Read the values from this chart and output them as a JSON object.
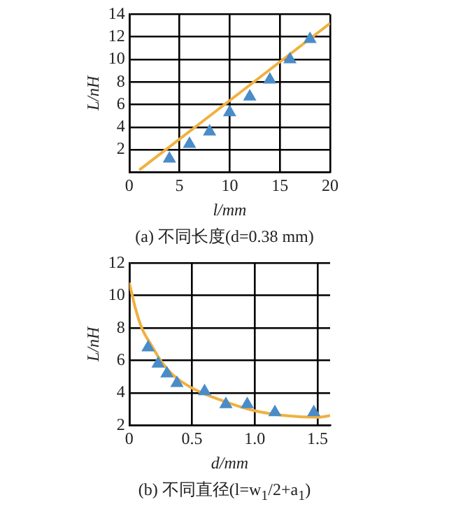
{
  "chart_data": [
    {
      "type": "scatter",
      "title": "(a) 不同长度(d=0.38 mm)",
      "xlabel": "l/mm",
      "ylabel": "L/nH",
      "grid": true,
      "xlim": [
        0,
        20
      ],
      "xticks": [
        0,
        5,
        10,
        15,
        20
      ],
      "ylim": [
        0,
        14
      ],
      "yticks": [
        {
          "value": 0,
          "label": null
        },
        2,
        4,
        6,
        8,
        10,
        12,
        14
      ],
      "series": [
        {
          "type": "line",
          "color": "#f0b040",
          "marker": "none",
          "x": [
            1,
            20
          ],
          "values": [
            0.2,
            13.2
          ]
        },
        {
          "type": "scatter",
          "color": "#4a8cc8",
          "marker": "triangle",
          "x": [
            4,
            6,
            8,
            10,
            12,
            14,
            16,
            18
          ],
          "values": [
            1.2,
            2.5,
            3.6,
            5.3,
            6.7,
            8.2,
            10,
            11.8
          ]
        }
      ]
    },
    {
      "type": "scatter",
      "title": "(b) 不同直径(l=w$_{1}$/2+a$_{1}$)",
      "xlabel": "d/mm",
      "ylabel": "L/nH",
      "grid": true,
      "xlim": [
        0,
        1.6
      ],
      "xticks": [
        0,
        0.5,
        {
          "value": 1,
          "label": "1.0"
        },
        1.5
      ],
      "ylim": [
        2,
        12
      ],
      "yticks": [
        2,
        4,
        6,
        8,
        10,
        12
      ],
      "series": [
        {
          "type": "line",
          "color": "#f0b040",
          "marker": "none",
          "x": [
            0,
            0.05,
            0.1,
            0.18,
            0.25,
            0.35,
            0.5,
            0.75,
            1.0,
            1.25,
            1.5,
            1.6
          ],
          "values": [
            10.8,
            9.2,
            8,
            6.9,
            6,
            5.1,
            4.3,
            3.5,
            2.9,
            2.6,
            2.5,
            2.6
          ]
        },
        {
          "type": "scatter",
          "color": "#4a8cc8",
          "marker": "triangle",
          "x": [
            0.15,
            0.23,
            0.3,
            0.38,
            0.6,
            0.77,
            0.94,
            1.16,
            1.47
          ],
          "values": [
            6.8,
            5.8,
            5.2,
            4.6,
            4.1,
            3.3,
            3.3,
            2.8,
            2.8
          ]
        }
      ]
    }
  ]
}
